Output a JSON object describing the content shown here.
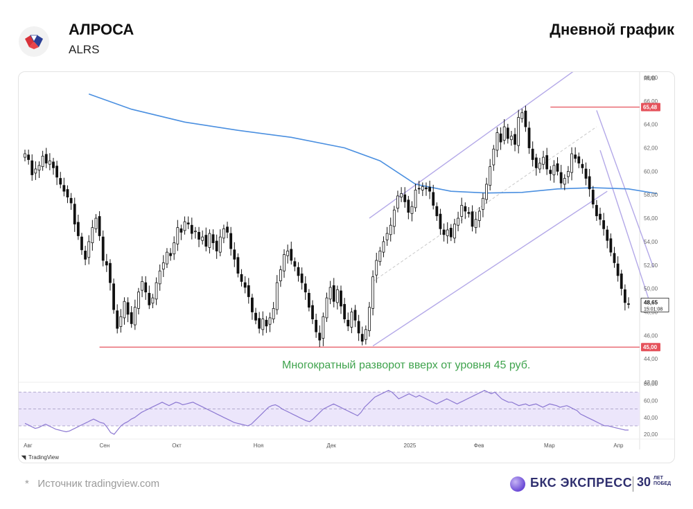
{
  "header": {
    "ticker_name": "АЛРОСА",
    "ticker_code": "ALRS",
    "chart_kind": "Дневной график"
  },
  "footer": {
    "source_note": "Источник tradingview.com",
    "source_asterisk": "*",
    "brand_name": "БКС ЭКСПРЕСС",
    "brand_years": "30",
    "brand_years_caption_1": "ЛЕТ",
    "brand_years_caption_2": "ПОБЕД"
  },
  "colors": {
    "up": "#ffffff",
    "down": "#111111",
    "ma": "#4a8fe0",
    "channel": "#b3a8e8",
    "level": "#e5525b",
    "annotation": "#3fa34d",
    "rsi": "#8c78d2",
    "rsi_band": "#ece6fb"
  },
  "chart_data": {
    "type": "candlestick",
    "currency_label": "RUB",
    "price_axis": {
      "min": 42,
      "max": 68,
      "ticks": [
        "68,00",
        "66,00",
        "64,00",
        "62,00",
        "60,00",
        "58,00",
        "56,00",
        "54,00",
        "52,00",
        "50,00",
        "48,00",
        "46,00",
        "44,00",
        "42,00"
      ]
    },
    "time_labels": [
      "Авг",
      "Сен",
      "Окт",
      "Ноя",
      "Дек",
      "2025",
      "Фев",
      "Мар",
      "Апр"
    ],
    "price_badges": [
      {
        "text": "65,48",
        "value": 65.48
      },
      {
        "text": "45,00",
        "value": 45.0
      }
    ],
    "last_price": {
      "text": "48,65",
      "sub": "15:01:08",
      "value": 48.65
    },
    "annotation": "Многократный разворот вверх от уровня 45 руб.",
    "closes": [
      61.5,
      61.0,
      59.7,
      60.2,
      60.5,
      61.3,
      60.7,
      60.9,
      60.3,
      59.5,
      58.9,
      58.3,
      57.8,
      57.3,
      55.5,
      54.5,
      53.3,
      52.5,
      54.0,
      55.2,
      56.0,
      54.5,
      52.4,
      52.0,
      50.5,
      48.2,
      46.6,
      47.6,
      48.9,
      47.8,
      47.0,
      48.4,
      49.7,
      50.6,
      49.7,
      48.6,
      49.2,
      50.5,
      51.5,
      52.2,
      53.1,
      52.8,
      53.9,
      55.2,
      54.8,
      55.7,
      55.5,
      54.7,
      54.9,
      54.2,
      54.4,
      53.6,
      54.7,
      53.9,
      53.2,
      54.4,
      55.1,
      54.8,
      53.4,
      52.5,
      51.3,
      50.6,
      50.1,
      49.3,
      48.0,
      47.3,
      46.6,
      47.4,
      46.8,
      47.5,
      48.3,
      50.5,
      51.6,
      52.9,
      53.2,
      52.4,
      51.9,
      51.1,
      50.5,
      49.7,
      48.4,
      47.4,
      46.3,
      45.6,
      47.6,
      49.2,
      50.1,
      48.9,
      49.9,
      48.5,
      47.4,
      46.8,
      48.0,
      47.3,
      46.2,
      45.5,
      46.5,
      48.4,
      51.0,
      52.4,
      53.2,
      54.0,
      54.7,
      55.4,
      56.7,
      57.9,
      58.1,
      57.4,
      56.5,
      57.0,
      58.4,
      58.5,
      58.7,
      58.5,
      58.3,
      57.1,
      56.2,
      55.1,
      54.6,
      55.0,
      54.4,
      55.5,
      56.0,
      57.1,
      56.6,
      56.4,
      55.3,
      55.9,
      56.6,
      57.7,
      58.9,
      60.4,
      61.9,
      63.3,
      62.5,
      63.8,
      62.8,
      63.0,
      62.3,
      64.6,
      65.0,
      63.8,
      62.0,
      61.0,
      60.3,
      60.7,
      61.2,
      60.2,
      59.8,
      60.5,
      60.0,
      59.0,
      59.4,
      60.0,
      61.5,
      61.1,
      60.7,
      60.3,
      59.4,
      58.5,
      57.2,
      56.2,
      55.9,
      55.1,
      54.1,
      53.1,
      52.2,
      51.1,
      50.0,
      48.8,
      48.65
    ],
    "ma200": [
      {
        "i": 18,
        "v": 66.6
      },
      {
        "i": 30,
        "v": 65.3
      },
      {
        "i": 45,
        "v": 64.2
      },
      {
        "i": 60,
        "v": 63.5
      },
      {
        "i": 75,
        "v": 62.9
      },
      {
        "i": 90,
        "v": 62.0
      },
      {
        "i": 100,
        "v": 60.9
      },
      {
        "i": 110,
        "v": 58.9
      },
      {
        "i": 120,
        "v": 58.3
      },
      {
        "i": 130,
        "v": 58.15
      },
      {
        "i": 140,
        "v": 58.2
      },
      {
        "i": 150,
        "v": 58.5
      },
      {
        "i": 160,
        "v": 58.6
      },
      {
        "i": 170,
        "v": 58.5
      },
      {
        "i": 178,
        "v": 58.1
      }
    ],
    "channel_up": [
      {
        "from": [
          97,
          56.0
        ],
        "to": [
          158,
          69.3
        ]
      },
      {
        "from": [
          98,
          45.1
        ],
        "to": [
          164,
          58.3
        ]
      }
    ],
    "channel_mid": {
      "from": [
        98,
        50.6
      ],
      "to": [
        161,
        63.8
      ]
    },
    "channel_down": [
      {
        "from": [
          161,
          65.2
        ],
        "to": [
          177,
          51.8
        ]
      },
      {
        "from": [
          162,
          61.8
        ],
        "to": [
          176,
          48.8
        ]
      }
    ],
    "support_level": {
      "value": 45.0,
      "from_index": 21
    },
    "resistance_level": {
      "value": 65.48,
      "from_index": 148
    },
    "rsi": {
      "axis_ticks": [
        "80,00",
        "60,00",
        "40,00",
        "20,00"
      ],
      "levels": [
        70,
        50,
        30
      ],
      "values": [
        33,
        31,
        29,
        27,
        28,
        30,
        32,
        30,
        28,
        26,
        25,
        24,
        23,
        24,
        26,
        28,
        30,
        32,
        34,
        36,
        38,
        36,
        34,
        33,
        28,
        22,
        20,
        25,
        30,
        33,
        35,
        38,
        40,
        43,
        46,
        48,
        50,
        52,
        54,
        56,
        58,
        56,
        54,
        56,
        58,
        57,
        55,
        56,
        57,
        58,
        56,
        54,
        52,
        50,
        48,
        46,
        44,
        42,
        40,
        38,
        36,
        34,
        33,
        32,
        31,
        30,
        32,
        36,
        40,
        44,
        48,
        52,
        54,
        55,
        53,
        50,
        48,
        46,
        44,
        42,
        40,
        38,
        36,
        35,
        38,
        42,
        46,
        50,
        52,
        54,
        56,
        54,
        52,
        50,
        48,
        46,
        44,
        42,
        46,
        52,
        56,
        60,
        64,
        66,
        68,
        70,
        72,
        70,
        66,
        62,
        64,
        66,
        68,
        66,
        64,
        66,
        64,
        62,
        60,
        58,
        56,
        58,
        60,
        62,
        60,
        58,
        56,
        58,
        60,
        62,
        64,
        66,
        68,
        70,
        72,
        70,
        68,
        70,
        66,
        62,
        60,
        58,
        58,
        56,
        54,
        55,
        56,
        54,
        55,
        56,
        54,
        52,
        54,
        56,
        55,
        54,
        52,
        53,
        54,
        52,
        50,
        48,
        44,
        42,
        40,
        38,
        36,
        34,
        32,
        30,
        30,
        29,
        28,
        27,
        26,
        25,
        25
      ]
    }
  }
}
